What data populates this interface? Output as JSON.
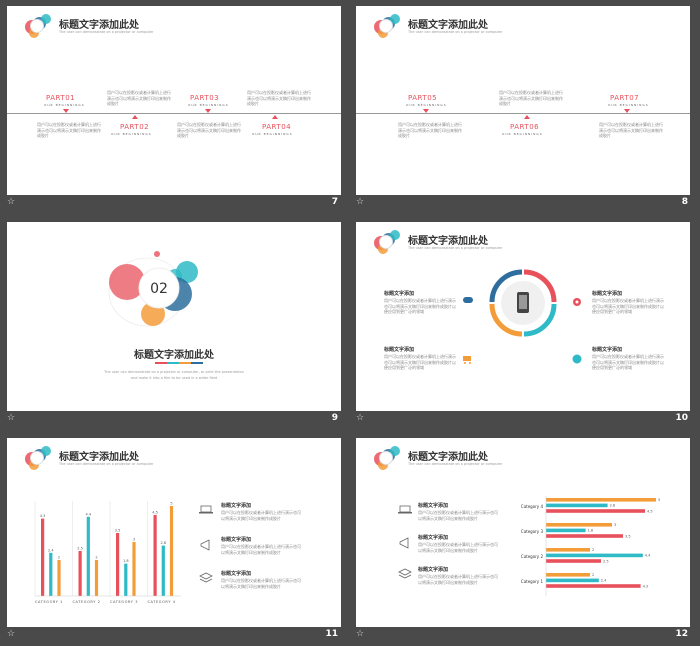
{
  "slide_title": "标题文字添加此处",
  "slide_subtitle": "The user can demonstrate on a projector or computer",
  "our_beginnings": "OUR BEGINNINGS",
  "para_text": "用户可以在投影仪或者计算机上进行演示也可以将演示文稿打印出来制作成胶片",
  "para_text_long": "用户可以在投影仪或者计算机上进行演示也可以将演示文稿打印出来制作成胶片以便应用到更广泛的领域",
  "slide7": {
    "number": "7",
    "parts": [
      "PART01",
      "PART02",
      "PART03",
      "PART04"
    ]
  },
  "slide8": {
    "number": "8",
    "parts": [
      "PART05",
      "PART06",
      "PART07"
    ]
  },
  "slide9": {
    "number": "9",
    "section_number": "02",
    "title": "标题文字添加此处",
    "desc_line1": "The user can demonstrate on a projector or computer, or print the presentation",
    "desc_line2": "and make it into a film to be used in a wider field"
  },
  "slide10": {
    "number": "10",
    "item_title": "标题文字添加"
  },
  "slide11": {
    "number": "11",
    "item_title": "标题文字添加",
    "chart_title_hint": ""
  },
  "slide12": {
    "number": "12",
    "item_title": "标题文字添加"
  },
  "colors": {
    "red": "#e8505b",
    "teal": "#2ebac6",
    "orange": "#f39c3a",
    "blue": "#2d6e9e",
    "grey": "#888888"
  },
  "chart_data": [
    {
      "type": "bar",
      "categories": [
        "CATEGORY 1",
        "CATEGORY 2",
        "CATEGORY 3",
        "CATEGORY 4"
      ],
      "series": [
        {
          "values": [
            4.3,
            2.5,
            3.5,
            4.5
          ]
        },
        {
          "values": [
            2.4,
            4.4,
            1.8,
            2.8
          ]
        },
        {
          "values": [
            2,
            2,
            3,
            5
          ]
        }
      ],
      "ylim": [
        0,
        5
      ]
    },
    {
      "type": "bar",
      "orientation": "horizontal",
      "categories": [
        "Category 1",
        "Category 2",
        "Category 3",
        "Category 4"
      ],
      "series": [
        {
          "values": [
            4.3,
            2.5,
            3.5,
            4.5
          ]
        },
        {
          "values": [
            2.4,
            4.4,
            1.8,
            2.8
          ]
        },
        {
          "values": [
            2,
            2,
            3,
            5
          ]
        }
      ],
      "ylim": [
        0,
        5
      ]
    }
  ]
}
